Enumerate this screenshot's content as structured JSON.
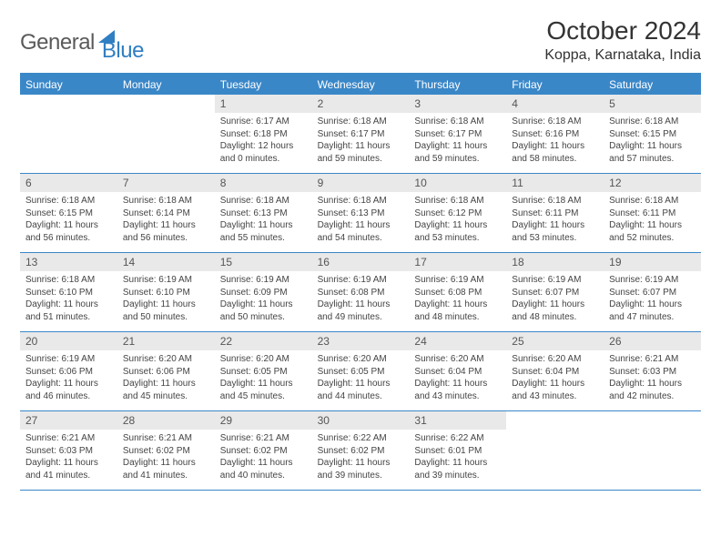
{
  "logo": {
    "text1": "General",
    "text2": "Blue"
  },
  "title": "October 2024",
  "location": "Koppa, Karnataka, India",
  "colors": {
    "header_bar": "#3a87c8",
    "daynum_bg": "#e9e9e9",
    "logo_blue": "#2f7fc2",
    "text": "#333333"
  },
  "day_names": [
    "Sunday",
    "Monday",
    "Tuesday",
    "Wednesday",
    "Thursday",
    "Friday",
    "Saturday"
  ],
  "weeks": [
    [
      {
        "empty": true
      },
      {
        "empty": true
      },
      {
        "num": "1",
        "sunrise": "Sunrise: 6:17 AM",
        "sunset": "Sunset: 6:18 PM",
        "daylight": "Daylight: 12 hours and 0 minutes."
      },
      {
        "num": "2",
        "sunrise": "Sunrise: 6:18 AM",
        "sunset": "Sunset: 6:17 PM",
        "daylight": "Daylight: 11 hours and 59 minutes."
      },
      {
        "num": "3",
        "sunrise": "Sunrise: 6:18 AM",
        "sunset": "Sunset: 6:17 PM",
        "daylight": "Daylight: 11 hours and 59 minutes."
      },
      {
        "num": "4",
        "sunrise": "Sunrise: 6:18 AM",
        "sunset": "Sunset: 6:16 PM",
        "daylight": "Daylight: 11 hours and 58 minutes."
      },
      {
        "num": "5",
        "sunrise": "Sunrise: 6:18 AM",
        "sunset": "Sunset: 6:15 PM",
        "daylight": "Daylight: 11 hours and 57 minutes."
      }
    ],
    [
      {
        "num": "6",
        "sunrise": "Sunrise: 6:18 AM",
        "sunset": "Sunset: 6:15 PM",
        "daylight": "Daylight: 11 hours and 56 minutes."
      },
      {
        "num": "7",
        "sunrise": "Sunrise: 6:18 AM",
        "sunset": "Sunset: 6:14 PM",
        "daylight": "Daylight: 11 hours and 56 minutes."
      },
      {
        "num": "8",
        "sunrise": "Sunrise: 6:18 AM",
        "sunset": "Sunset: 6:13 PM",
        "daylight": "Daylight: 11 hours and 55 minutes."
      },
      {
        "num": "9",
        "sunrise": "Sunrise: 6:18 AM",
        "sunset": "Sunset: 6:13 PM",
        "daylight": "Daylight: 11 hours and 54 minutes."
      },
      {
        "num": "10",
        "sunrise": "Sunrise: 6:18 AM",
        "sunset": "Sunset: 6:12 PM",
        "daylight": "Daylight: 11 hours and 53 minutes."
      },
      {
        "num": "11",
        "sunrise": "Sunrise: 6:18 AM",
        "sunset": "Sunset: 6:11 PM",
        "daylight": "Daylight: 11 hours and 53 minutes."
      },
      {
        "num": "12",
        "sunrise": "Sunrise: 6:18 AM",
        "sunset": "Sunset: 6:11 PM",
        "daylight": "Daylight: 11 hours and 52 minutes."
      }
    ],
    [
      {
        "num": "13",
        "sunrise": "Sunrise: 6:18 AM",
        "sunset": "Sunset: 6:10 PM",
        "daylight": "Daylight: 11 hours and 51 minutes."
      },
      {
        "num": "14",
        "sunrise": "Sunrise: 6:19 AM",
        "sunset": "Sunset: 6:10 PM",
        "daylight": "Daylight: 11 hours and 50 minutes."
      },
      {
        "num": "15",
        "sunrise": "Sunrise: 6:19 AM",
        "sunset": "Sunset: 6:09 PM",
        "daylight": "Daylight: 11 hours and 50 minutes."
      },
      {
        "num": "16",
        "sunrise": "Sunrise: 6:19 AM",
        "sunset": "Sunset: 6:08 PM",
        "daylight": "Daylight: 11 hours and 49 minutes."
      },
      {
        "num": "17",
        "sunrise": "Sunrise: 6:19 AM",
        "sunset": "Sunset: 6:08 PM",
        "daylight": "Daylight: 11 hours and 48 minutes."
      },
      {
        "num": "18",
        "sunrise": "Sunrise: 6:19 AM",
        "sunset": "Sunset: 6:07 PM",
        "daylight": "Daylight: 11 hours and 48 minutes."
      },
      {
        "num": "19",
        "sunrise": "Sunrise: 6:19 AM",
        "sunset": "Sunset: 6:07 PM",
        "daylight": "Daylight: 11 hours and 47 minutes."
      }
    ],
    [
      {
        "num": "20",
        "sunrise": "Sunrise: 6:19 AM",
        "sunset": "Sunset: 6:06 PM",
        "daylight": "Daylight: 11 hours and 46 minutes."
      },
      {
        "num": "21",
        "sunrise": "Sunrise: 6:20 AM",
        "sunset": "Sunset: 6:06 PM",
        "daylight": "Daylight: 11 hours and 45 minutes."
      },
      {
        "num": "22",
        "sunrise": "Sunrise: 6:20 AM",
        "sunset": "Sunset: 6:05 PM",
        "daylight": "Daylight: 11 hours and 45 minutes."
      },
      {
        "num": "23",
        "sunrise": "Sunrise: 6:20 AM",
        "sunset": "Sunset: 6:05 PM",
        "daylight": "Daylight: 11 hours and 44 minutes."
      },
      {
        "num": "24",
        "sunrise": "Sunrise: 6:20 AM",
        "sunset": "Sunset: 6:04 PM",
        "daylight": "Daylight: 11 hours and 43 minutes."
      },
      {
        "num": "25",
        "sunrise": "Sunrise: 6:20 AM",
        "sunset": "Sunset: 6:04 PM",
        "daylight": "Daylight: 11 hours and 43 minutes."
      },
      {
        "num": "26",
        "sunrise": "Sunrise: 6:21 AM",
        "sunset": "Sunset: 6:03 PM",
        "daylight": "Daylight: 11 hours and 42 minutes."
      }
    ],
    [
      {
        "num": "27",
        "sunrise": "Sunrise: 6:21 AM",
        "sunset": "Sunset: 6:03 PM",
        "daylight": "Daylight: 11 hours and 41 minutes."
      },
      {
        "num": "28",
        "sunrise": "Sunrise: 6:21 AM",
        "sunset": "Sunset: 6:02 PM",
        "daylight": "Daylight: 11 hours and 41 minutes."
      },
      {
        "num": "29",
        "sunrise": "Sunrise: 6:21 AM",
        "sunset": "Sunset: 6:02 PM",
        "daylight": "Daylight: 11 hours and 40 minutes."
      },
      {
        "num": "30",
        "sunrise": "Sunrise: 6:22 AM",
        "sunset": "Sunset: 6:02 PM",
        "daylight": "Daylight: 11 hours and 39 minutes."
      },
      {
        "num": "31",
        "sunrise": "Sunrise: 6:22 AM",
        "sunset": "Sunset: 6:01 PM",
        "daylight": "Daylight: 11 hours and 39 minutes."
      },
      {
        "empty": true
      },
      {
        "empty": true
      }
    ]
  ]
}
